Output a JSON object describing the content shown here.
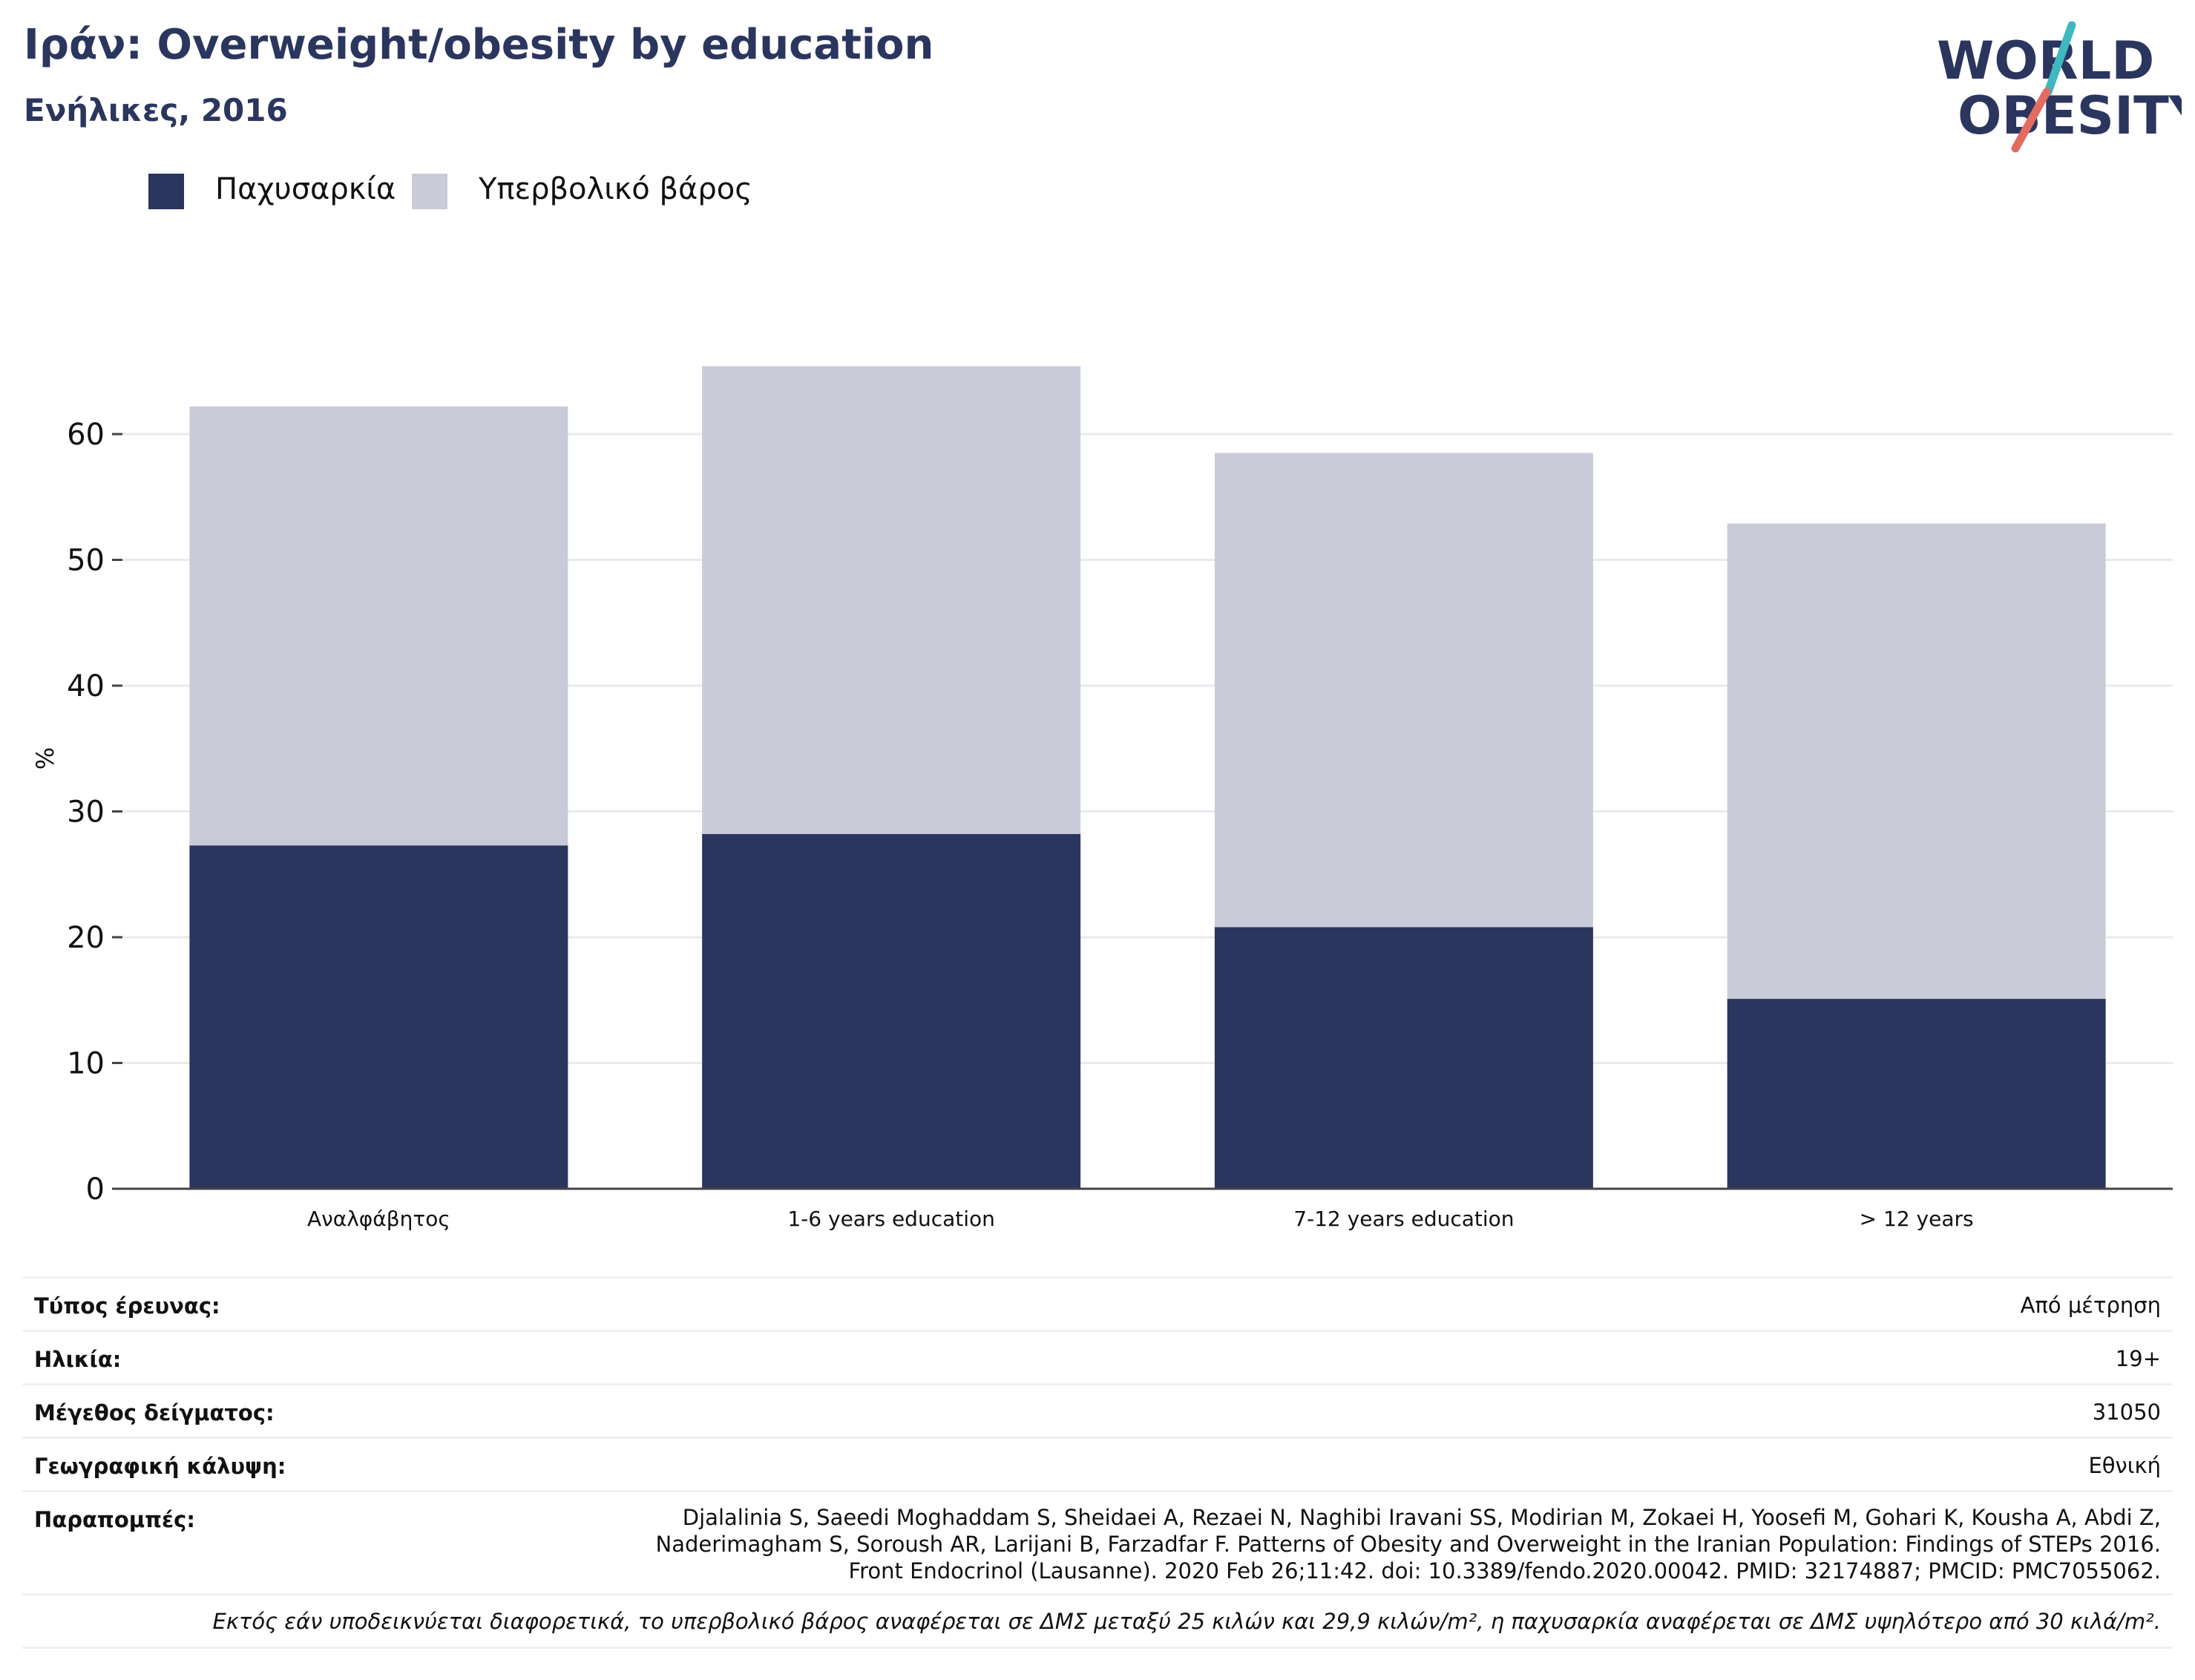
{
  "header": {
    "title": "Ιράν: Overweight/obesity by education",
    "subtitle": "Ενήλικες, 2016"
  },
  "logo": {
    "line1": "WORLD",
    "line2": "OBESITY"
  },
  "colors": {
    "obesity": "#2b365f",
    "overweight": "#cacbd8",
    "brand_navy": "#2b365f",
    "brand_teal": "#3fb8c0",
    "brand_coral": "#e46b5f"
  },
  "chart_data": {
    "type": "bar",
    "stacked": true,
    "categories": [
      "Αναλφάβητος",
      "1-6 years education",
      "7-12 years education",
      "> 12 years"
    ],
    "series": [
      {
        "name": "Παχυσαρκία",
        "values": [
          27.3,
          28.2,
          20.8,
          15.1
        ]
      },
      {
        "name": "Υπερβολικό βάρος",
        "values": [
          34.9,
          37.2,
          37.7,
          37.8
        ]
      }
    ],
    "totals": [
      62.2,
      65.4,
      58.5,
      52.9
    ],
    "ylabel": "%",
    "yticks": [
      0,
      10,
      20,
      30,
      40,
      50,
      60
    ],
    "ylim": [
      0,
      70
    ],
    "grid": true,
    "legend_position": "top-left"
  },
  "info": {
    "rows": [
      {
        "label": "Τύπος έρευνας:",
        "value": "Από μέτρηση"
      },
      {
        "label": "Ηλικία:",
        "value": "19+"
      },
      {
        "label": "Μέγεθος δείγματος:",
        "value": "31050"
      },
      {
        "label": "Γεωγραφική κάλυψη:",
        "value": "Εθνική"
      }
    ],
    "references_label": "Παραπομπές:",
    "references_lines": [
      "Djalalinia S, Saeedi Moghaddam S, Sheidaei A, Rezaei N, Naghibi Iravani SS, Modirian M, Zokaei H, Yoosefi M, Gohari K, Kousha A, Abdi Z,",
      "Naderimagham S, Soroush AR, Larijani B, Farzadfar F. Patterns of Obesity and Overweight in the Iranian Population: Findings of STEPs 2016.",
      "Front Endocrinol (Lausanne). 2020 Feb 26;11:42. doi: 10.3389/fendo.2020.00042. PMID: 32174887; PMCID: PMC7055062."
    ],
    "footnote": "Εκτός εάν υποδεικνύεται διαφορετικά, το υπερβολικό βάρος αναφέρεται σε ΔΜΣ μεταξύ 25 κιλών και 29,9 κιλών/m², η παχυσαρκία αναφέρεται σε ΔΜΣ υψηλότερο από 30 κιλά/m²."
  }
}
